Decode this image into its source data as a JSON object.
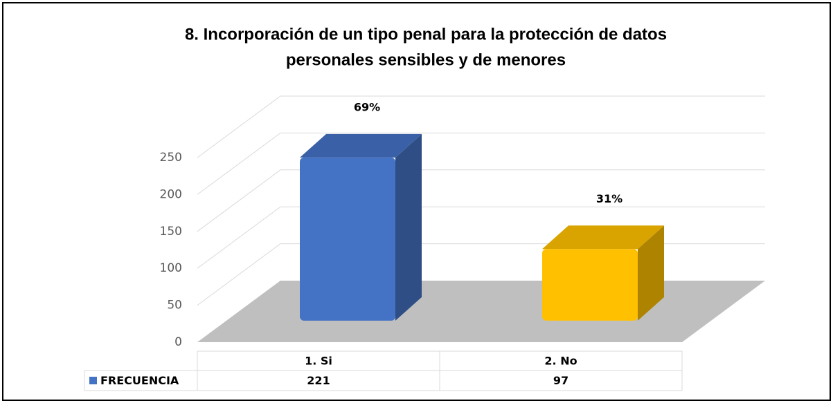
{
  "chart_data": {
    "type": "bar3d",
    "title": "8. Incorporación de un tipo penal para la protección de datos",
    "subtitle": "personales sensibles y de menores",
    "categories": [
      "1. Si",
      "2. No"
    ],
    "series": [
      {
        "name": "FRECUENCIA",
        "color": "#4472c4",
        "colors": [
          "#4472c4",
          "#ffc000"
        ],
        "values": [
          221,
          97
        ],
        "percent_labels": [
          "69%",
          "31%"
        ]
      }
    ],
    "ylim": [
      0,
      250
    ],
    "yticks": [
      0,
      50,
      100,
      150,
      200,
      250
    ],
    "grid": true,
    "data_table": true
  }
}
